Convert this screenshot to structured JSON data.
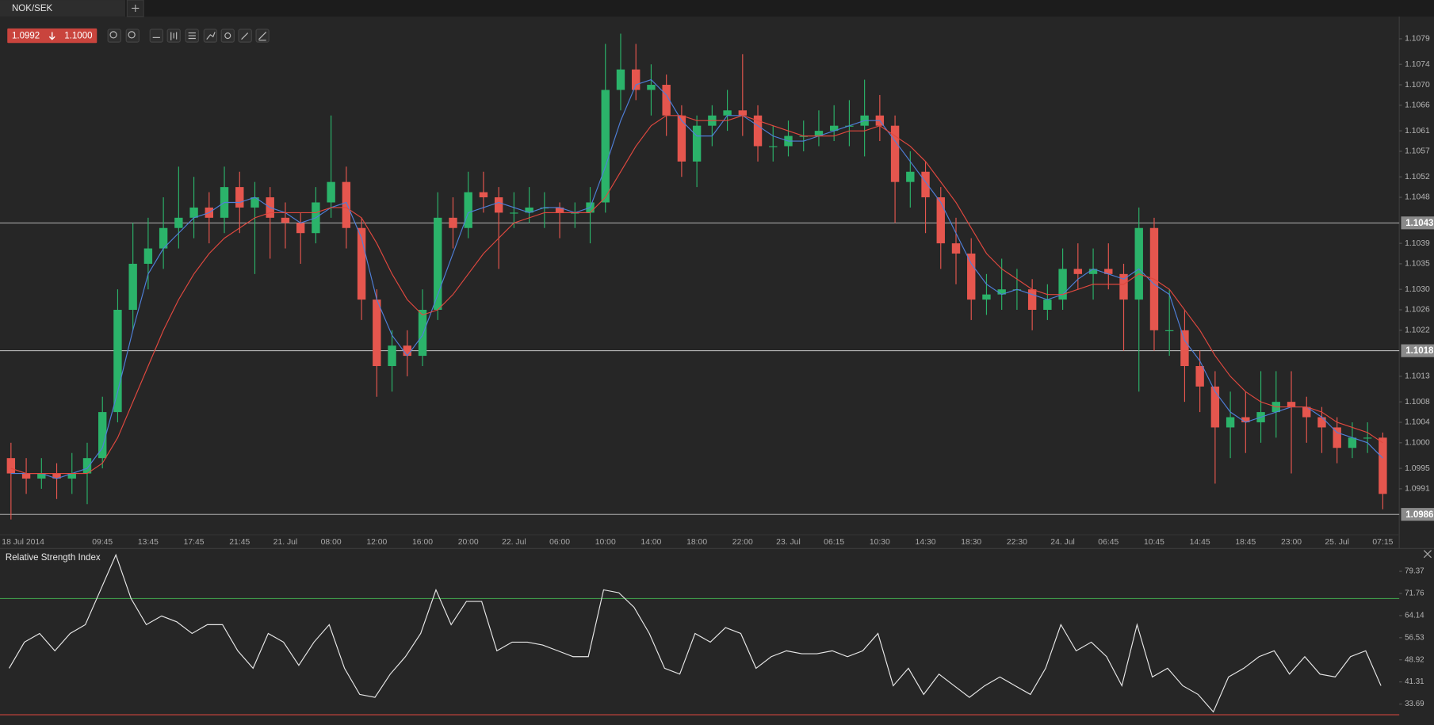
{
  "tab": "NOK/SEK",
  "quote": {
    "bid": "1.0992",
    "ask": "1.1000"
  },
  "chart_data": [
    {
      "type": "candlestick",
      "categories": [
        "18 Jul 2014",
        null,
        "09:45",
        "13:45",
        "17:45",
        "21:45",
        "21. Jul",
        "08:00",
        "12:00",
        "16:00",
        "20:00",
        "22. Jul",
        "06:00",
        "10:00",
        "14:00",
        "18:00",
        "22:00",
        "23. Jul",
        "06:15",
        "10:30",
        "14:30",
        "18:30",
        "22:30",
        "24. Jul",
        "06:45",
        "10:45",
        "14:45",
        "18:45",
        "23:00",
        "25. Jul",
        "07:15"
      ],
      "ohlc": [
        [
          1.0997,
          1.1,
          1.0985,
          1.0994
        ],
        [
          1.0994,
          1.0997,
          1.099,
          1.0993
        ],
        [
          1.0993,
          1.0997,
          1.0991,
          1.0994
        ],
        [
          1.0994,
          1.0996,
          1.0989,
          1.0993
        ],
        [
          1.0993,
          1.0998,
          1.099,
          1.0994
        ],
        [
          1.0994,
          1.1,
          1.0988,
          1.0997
        ],
        [
          1.0997,
          1.1009,
          1.0995,
          1.1006
        ],
        [
          1.1006,
          1.103,
          1.1004,
          1.1026
        ],
        [
          1.1026,
          1.1043,
          1.1022,
          1.1035
        ],
        [
          1.1035,
          1.1044,
          1.103,
          1.1038
        ],
        [
          1.1038,
          1.1048,
          1.1034,
          1.1042
        ],
        [
          1.1042,
          1.1054,
          1.1038,
          1.1044
        ],
        [
          1.1044,
          1.1052,
          1.104,
          1.1046
        ],
        [
          1.1046,
          1.1049,
          1.1039,
          1.1044
        ],
        [
          1.1044,
          1.1054,
          1.1041,
          1.105
        ],
        [
          1.105,
          1.1053,
          1.1041,
          1.1046
        ],
        [
          1.1046,
          1.1051,
          1.1033,
          1.1048
        ],
        [
          1.1048,
          1.105,
          1.1036,
          1.1044
        ],
        [
          1.1044,
          1.1047,
          1.1038,
          1.1043
        ],
        [
          1.1043,
          1.1045,
          1.1035,
          1.1041
        ],
        [
          1.1041,
          1.105,
          1.1039,
          1.1047
        ],
        [
          1.1047,
          1.1064,
          1.1044,
          1.1051
        ],
        [
          1.1051,
          1.1054,
          1.1038,
          1.1042
        ],
        [
          1.1042,
          1.1044,
          1.1024,
          1.1028
        ],
        [
          1.1028,
          1.103,
          1.1009,
          1.1015
        ],
        [
          1.1015,
          1.1022,
          1.101,
          1.1019
        ],
        [
          1.1019,
          1.1022,
          1.1013,
          1.1017
        ],
        [
          1.1017,
          1.103,
          1.1015,
          1.1026
        ],
        [
          1.1026,
          1.1049,
          1.1024,
          1.1044
        ],
        [
          1.1044,
          1.1048,
          1.1038,
          1.1042
        ],
        [
          1.1042,
          1.1053,
          1.104,
          1.1049
        ],
        [
          1.1049,
          1.1053,
          1.1045,
          1.1048
        ],
        [
          1.1048,
          1.105,
          1.1034,
          1.1045
        ],
        [
          1.1045,
          1.1049,
          1.1042,
          1.1045
        ],
        [
          1.1045,
          1.105,
          1.1043,
          1.1046
        ],
        [
          1.1046,
          1.1049,
          1.1042,
          1.1046
        ],
        [
          1.1046,
          1.1047,
          1.104,
          1.1045
        ],
        [
          1.1045,
          1.1047,
          1.1042,
          1.1045
        ],
        [
          1.1045,
          1.105,
          1.1039,
          1.1047
        ],
        [
          1.1047,
          1.1078,
          1.1045,
          1.1069
        ],
        [
          1.1069,
          1.108,
          1.1065,
          1.1073
        ],
        [
          1.1073,
          1.1078,
          1.1067,
          1.1069
        ],
        [
          1.1069,
          1.1074,
          1.1064,
          1.107
        ],
        [
          1.107,
          1.1072,
          1.106,
          1.1064
        ],
        [
          1.1064,
          1.1066,
          1.1052,
          1.1055
        ],
        [
          1.1055,
          1.1064,
          1.105,
          1.1062
        ],
        [
          1.1062,
          1.1066,
          1.1058,
          1.1064
        ],
        [
          1.1064,
          1.1069,
          1.1061,
          1.1065
        ],
        [
          1.1065,
          1.1076,
          1.106,
          1.1064
        ],
        [
          1.1064,
          1.1066,
          1.1055,
          1.1058
        ],
        [
          1.1058,
          1.1062,
          1.1055,
          1.1058
        ],
        [
          1.1058,
          1.1063,
          1.1056,
          1.106
        ],
        [
          1.106,
          1.1063,
          1.1057,
          1.106
        ],
        [
          1.106,
          1.1065,
          1.1058,
          1.1061
        ],
        [
          1.1061,
          1.1066,
          1.1059,
          1.1062
        ],
        [
          1.1062,
          1.1067,
          1.1058,
          1.1062
        ],
        [
          1.1062,
          1.1071,
          1.1056,
          1.1064
        ],
        [
          1.1064,
          1.1068,
          1.1059,
          1.1062
        ],
        [
          1.1062,
          1.1064,
          1.1043,
          1.1051
        ],
        [
          1.1051,
          1.1057,
          1.1046,
          1.1053
        ],
        [
          1.1053,
          1.1055,
          1.1041,
          1.1048
        ],
        [
          1.1048,
          1.105,
          1.1034,
          1.1039
        ],
        [
          1.1039,
          1.1044,
          1.1031,
          1.1037
        ],
        [
          1.1037,
          1.104,
          1.1024,
          1.1028
        ],
        [
          1.1028,
          1.1033,
          1.1025,
          1.1029
        ],
        [
          1.1029,
          1.1036,
          1.1026,
          1.103
        ],
        [
          1.103,
          1.1034,
          1.1026,
          1.103
        ],
        [
          1.103,
          1.1032,
          1.1022,
          1.1026
        ],
        [
          1.1026,
          1.1031,
          1.1024,
          1.1028
        ],
        [
          1.1028,
          1.1038,
          1.1026,
          1.1034
        ],
        [
          1.1034,
          1.1039,
          1.103,
          1.1033
        ],
        [
          1.1033,
          1.1038,
          1.1028,
          1.1034
        ],
        [
          1.1034,
          1.1039,
          1.103,
          1.1033
        ],
        [
          1.1033,
          1.1035,
          1.1018,
          1.1028
        ],
        [
          1.1028,
          1.1046,
          1.101,
          1.1042
        ],
        [
          1.1042,
          1.1044,
          1.1018,
          1.1022
        ],
        [
          1.1022,
          1.103,
          1.1017,
          1.1022
        ],
        [
          1.1022,
          1.1026,
          1.1008,
          1.1015
        ],
        [
          1.1015,
          1.1018,
          1.1006,
          1.1011
        ],
        [
          1.1011,
          1.1014,
          1.0992,
          1.1003
        ],
        [
          1.1003,
          1.101,
          1.0997,
          1.1005
        ],
        [
          1.1005,
          1.101,
          1.0998,
          1.1004
        ],
        [
          1.1004,
          1.1014,
          1.1,
          1.1006
        ],
        [
          1.1006,
          1.1014,
          1.1001,
          1.1008
        ],
        [
          1.1008,
          1.1014,
          1.0994,
          1.1007
        ],
        [
          1.1007,
          1.1009,
          1.1,
          1.1005
        ],
        [
          1.1005,
          1.1007,
          1.0998,
          1.1003
        ],
        [
          1.1003,
          1.1005,
          1.0996,
          1.0999
        ],
        [
          1.0999,
          1.1004,
          1.0997,
          1.1001
        ],
        [
          1.1001,
          1.1004,
          1.0998,
          1.1001
        ],
        [
          1.1001,
          1.1002,
          1.0987,
          1.099
        ]
      ],
      "lines": [
        {
          "color": "#4f7fd8",
          "values": [
            1.0994,
            1.0994,
            1.0994,
            1.0993,
            1.0994,
            1.0995,
            1.0999,
            1.101,
            1.1022,
            1.1033,
            1.1038,
            1.1041,
            1.1044,
            1.1045,
            1.1047,
            1.1047,
            1.1048,
            1.1046,
            1.1045,
            1.1043,
            1.1044,
            1.1046,
            1.1047,
            1.104,
            1.1028,
            1.1021,
            1.1017,
            1.1021,
            1.1029,
            1.1037,
            1.1045,
            1.1046,
            1.1047,
            1.1046,
            1.1045,
            1.1046,
            1.1046,
            1.1045,
            1.1046,
            1.1054,
            1.1063,
            1.107,
            1.1071,
            1.1068,
            1.1063,
            1.106,
            1.106,
            1.1064,
            1.1064,
            1.1062,
            1.106,
            1.1059,
            1.1059,
            1.106,
            1.1061,
            1.1062,
            1.1063,
            1.1063,
            1.1059,
            1.1055,
            1.1051,
            1.1047,
            1.1041,
            1.1035,
            1.1031,
            1.1029,
            1.103,
            1.1029,
            1.1028,
            1.1029,
            1.1032,
            1.1034,
            1.1033,
            1.1032,
            1.1034,
            1.1031,
            1.1029,
            1.102,
            1.1016,
            1.101,
            1.1006,
            1.1004,
            1.1005,
            1.1006,
            1.1007,
            1.1007,
            1.1005,
            1.1002,
            1.1001,
            1.1,
            1.0997
          ]
        },
        {
          "color": "#e0483f",
          "values": [
            1.0995,
            1.0994,
            1.0994,
            1.0994,
            1.0994,
            1.0994,
            1.0996,
            1.1001,
            1.1008,
            1.1015,
            1.1022,
            1.1028,
            1.1033,
            1.1037,
            1.104,
            1.1042,
            1.1044,
            1.1045,
            1.1045,
            1.1045,
            1.1045,
            1.1046,
            1.1046,
            1.1044,
            1.1039,
            1.1033,
            1.1028,
            1.1025,
            1.1026,
            1.1029,
            1.1033,
            1.1037,
            1.104,
            1.1043,
            1.1044,
            1.1045,
            1.1045,
            1.1045,
            1.1045,
            1.1048,
            1.1053,
            1.1058,
            1.1062,
            1.1064,
            1.1064,
            1.1063,
            1.1063,
            1.1063,
            1.1064,
            1.1063,
            1.1062,
            1.1061,
            1.106,
            1.106,
            1.106,
            1.1061,
            1.1061,
            1.1062,
            1.106,
            1.1058,
            1.1055,
            1.1051,
            1.1047,
            1.1042,
            1.1037,
            1.1034,
            1.1032,
            1.103,
            1.1029,
            1.1029,
            1.103,
            1.1031,
            1.1031,
            1.1031,
            1.1033,
            1.1032,
            1.103,
            1.1026,
            1.1022,
            1.1017,
            1.1013,
            1.101,
            1.1008,
            1.1007,
            1.1007,
            1.1007,
            1.1006,
            1.1004,
            1.1003,
            1.1002,
            1.1
          ]
        }
      ],
      "up_color": "#2bb36a",
      "down_color": "#e5564e",
      "levels": [
        1.1043,
        1.1018,
        1.0986
      ],
      "level_color": "#c8c8c8",
      "ylim": [
        1.0982,
        1.1083
      ],
      "yticks": [
        1.1079,
        1.1074,
        {
          "value": 1.107,
          "label": "1.1070"
        },
        1.1066,
        1.1061,
        1.1057,
        1.1052,
        1.1048,
        1.1039,
        1.1035,
        {
          "value": 1.103,
          "label": "1.1030"
        },
        1.1026,
        1.1022,
        1.1013,
        1.1008,
        1.1004,
        {
          "value": 1.1,
          "label": "1.1000"
        },
        1.0995,
        1.0991
      ],
      "grid": false
    },
    {
      "type": "line",
      "title": "Relative Strength Index",
      "color": "#e8e8e8",
      "values": [
        46,
        55,
        58,
        52,
        58,
        61,
        73,
        85,
        70,
        61,
        64,
        62,
        58,
        61,
        61,
        52,
        46,
        58,
        55,
        47,
        55,
        61,
        46,
        37,
        36,
        44,
        50,
        58,
        73,
        61,
        69,
        69,
        52,
        55,
        55,
        54,
        52,
        50,
        50,
        73,
        72,
        67,
        58,
        46,
        44,
        58,
        55,
        60,
        58,
        46,
        50,
        52,
        51,
        51,
        52,
        50,
        52,
        58,
        40,
        46,
        37,
        44,
        40,
        36,
        40,
        43,
        40,
        37,
        46,
        61,
        52,
        55,
        50,
        40,
        61,
        43,
        46,
        40,
        37,
        31,
        43,
        46,
        50,
        52,
        44,
        50,
        44,
        43,
        50,
        52,
        40
      ],
      "levels": [
        {
          "value": 70,
          "color": "#3f9a4a"
        },
        {
          "value": 30,
          "color": "#d0453c"
        }
      ],
      "ylim": [
        26.5,
        86.9
      ],
      "yticks": [
        79.37,
        71.76,
        64.14,
        56.53,
        48.92,
        41.31,
        33.69
      ],
      "grid": false
    }
  ]
}
